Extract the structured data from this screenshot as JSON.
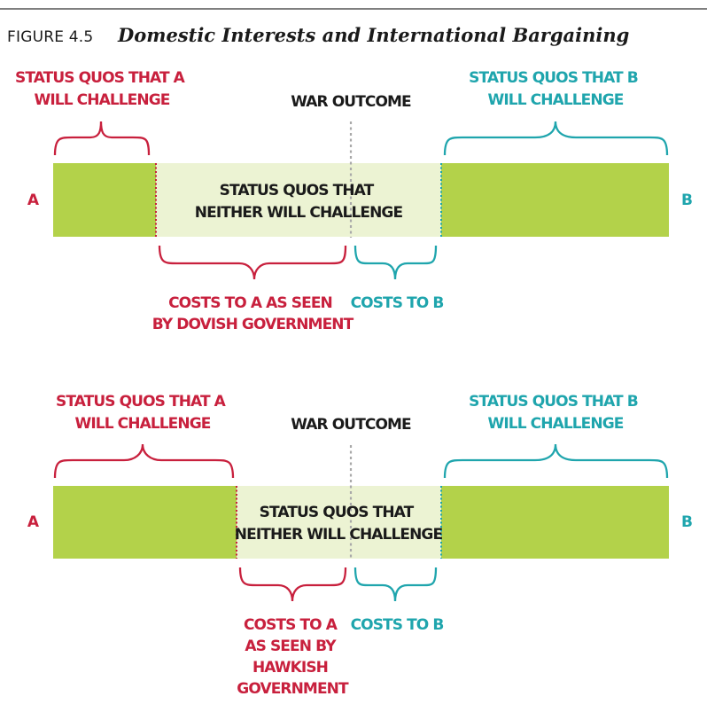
{
  "figure": {
    "number": "FIGURE 4.5",
    "title": "Domestic Interests and International Bargaining"
  },
  "colors": {
    "a": "#c8203d",
    "b": "#1fa5ad",
    "bar": "#b3d24a",
    "middle": "#ecf3d3",
    "text": "#1a1a1a",
    "divider": "#555555",
    "war_line": "#a9a9a9"
  },
  "panels": [
    {
      "label_a": "A",
      "label_b": "B",
      "a_challenge": [
        "STATUS QUOS THAT A",
        "WILL CHALLENGE"
      ],
      "b_challenge": [
        "STATUS QUOS THAT B",
        "WILL CHALLENGE"
      ],
      "war_outcome": "WAR OUTCOME",
      "neither": [
        "STATUS QUOS THAT",
        "NEITHER WILL CHALLENGE"
      ],
      "costs_a": [
        "COSTS TO A AS SEEN",
        "BY DOVISH GOVERNMENT"
      ],
      "costs_b": [
        "COSTS TO B"
      ]
    },
    {
      "label_a": "A",
      "label_b": "B",
      "a_challenge": [
        "STATUS QUOS THAT A",
        "WILL CHALLENGE"
      ],
      "b_challenge": [
        "STATUS QUOS THAT B",
        "WILL CHALLENGE"
      ],
      "war_outcome": "WAR OUTCOME",
      "neither": [
        "STATUS QUOS THAT",
        "NEITHER WILL CHALLENGE"
      ],
      "costs_a": [
        "COSTS TO A",
        "AS SEEN BY",
        "HAWKISH",
        "GOVERNMENT"
      ],
      "costs_b": [
        "COSTS TO B"
      ]
    }
  ]
}
